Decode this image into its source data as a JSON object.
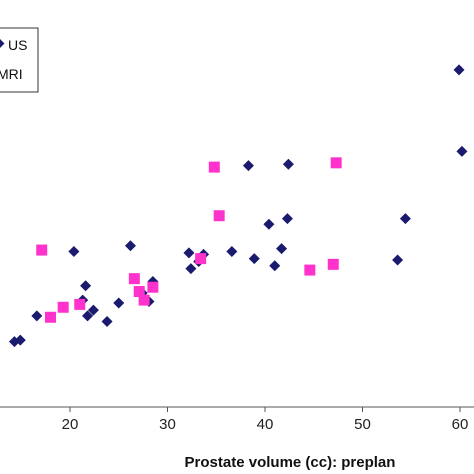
{
  "chart_data": {
    "type": "scatter",
    "xlabel": "Prostate volume (cc): preplan",
    "ylabel": "",
    "xlim": [
      13,
      61
    ],
    "x_ticks": [
      20,
      30,
      40,
      50,
      60
    ],
    "grid": false,
    "legend_position": "top-left",
    "series": [
      {
        "name": "US",
        "marker": "diamond",
        "color": "#1a1a6e",
        "points": [
          {
            "x": 14.3,
            "y": 1.0
          },
          {
            "x": 14.9,
            "y": 2.0
          },
          {
            "x": 16.6,
            "y": 19.0
          },
          {
            "x": 20.4,
            "y": 64.0
          },
          {
            "x": 21.3,
            "y": 30.0
          },
          {
            "x": 21.6,
            "y": 40.0
          },
          {
            "x": 21.8,
            "y": 19.0
          },
          {
            "x": 22.4,
            "y": 23.0
          },
          {
            "x": 23.8,
            "y": 15.0
          },
          {
            "x": 25.0,
            "y": 28.0
          },
          {
            "x": 26.2,
            "y": 68.0
          },
          {
            "x": 27.4,
            "y": 35.0
          },
          {
            "x": 28.1,
            "y": 29.0
          },
          {
            "x": 28.5,
            "y": 43.0
          },
          {
            "x": 32.2,
            "y": 63.0
          },
          {
            "x": 32.4,
            "y": 52.0
          },
          {
            "x": 33.2,
            "y": 57.0
          },
          {
            "x": 33.7,
            "y": 62.0
          },
          {
            "x": 36.6,
            "y": 64.0
          },
          {
            "x": 38.3,
            "y": 124.0
          },
          {
            "x": 38.9,
            "y": 59.0
          },
          {
            "x": 40.4,
            "y": 83.0
          },
          {
            "x": 41.0,
            "y": 54.0
          },
          {
            "x": 41.7,
            "y": 66.0
          },
          {
            "x": 42.3,
            "y": 87.0
          },
          {
            "x": 42.4,
            "y": 125.0
          },
          {
            "x": 53.6,
            "y": 58.0
          },
          {
            "x": 54.4,
            "y": 87.0
          },
          {
            "x": 59.9,
            "y": 191.0
          },
          {
            "x": 60.2,
            "y": 134.0
          }
        ]
      },
      {
        "name": "MRI",
        "marker": "square",
        "color": "#ff33cc",
        "points": [
          {
            "x": 17.1,
            "y": 65.0
          },
          {
            "x": 18.0,
            "y": 18.0
          },
          {
            "x": 19.3,
            "y": 25.0
          },
          {
            "x": 21.0,
            "y": 27.0
          },
          {
            "x": 26.6,
            "y": 45.0
          },
          {
            "x": 27.1,
            "y": 36.0
          },
          {
            "x": 27.6,
            "y": 30.0
          },
          {
            "x": 28.5,
            "y": 39.0
          },
          {
            "x": 33.4,
            "y": 59.0
          },
          {
            "x": 34.8,
            "y": 123.0
          },
          {
            "x": 35.3,
            "y": 89.0
          },
          {
            "x": 44.6,
            "y": 51.0
          },
          {
            "x": 47.0,
            "y": 55.0
          },
          {
            "x": 47.3,
            "y": 126.0
          }
        ]
      }
    ]
  },
  "legend": {
    "items": [
      {
        "label": "US"
      },
      {
        "label": "MRI"
      }
    ]
  }
}
